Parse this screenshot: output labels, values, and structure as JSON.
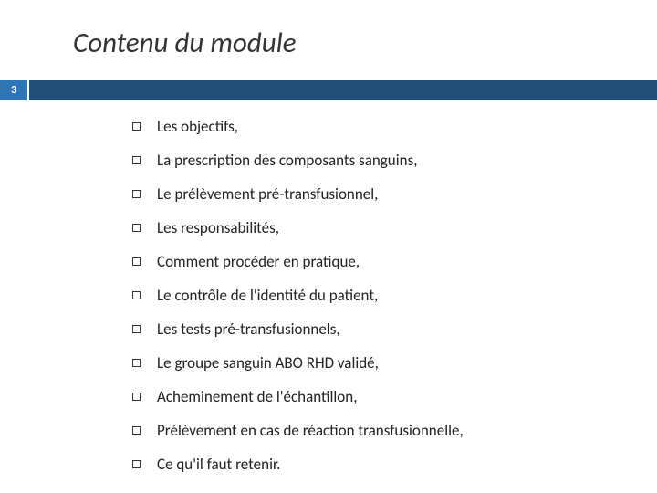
{
  "title": "Contenu du module",
  "slide_number": "3",
  "bar_small_color": "#2e75b6",
  "bar_large_color": "#1f4e79",
  "items": [
    "Les objectifs,",
    "La prescription des composants sanguins,",
    "Le prélèvement pré-transfusionnel,",
    "Les responsabilités,",
    "Comment procéder en pratique,",
    "Le contrôle de l'identité du patient,",
    "Les tests pré-transfusionnels,",
    "Le groupe sanguin ABO RHD validé,",
    "Acheminement de l'échantillon,",
    "Prélèvement en cas de réaction transfusionnelle,",
    "Ce qu'il faut retenir."
  ]
}
